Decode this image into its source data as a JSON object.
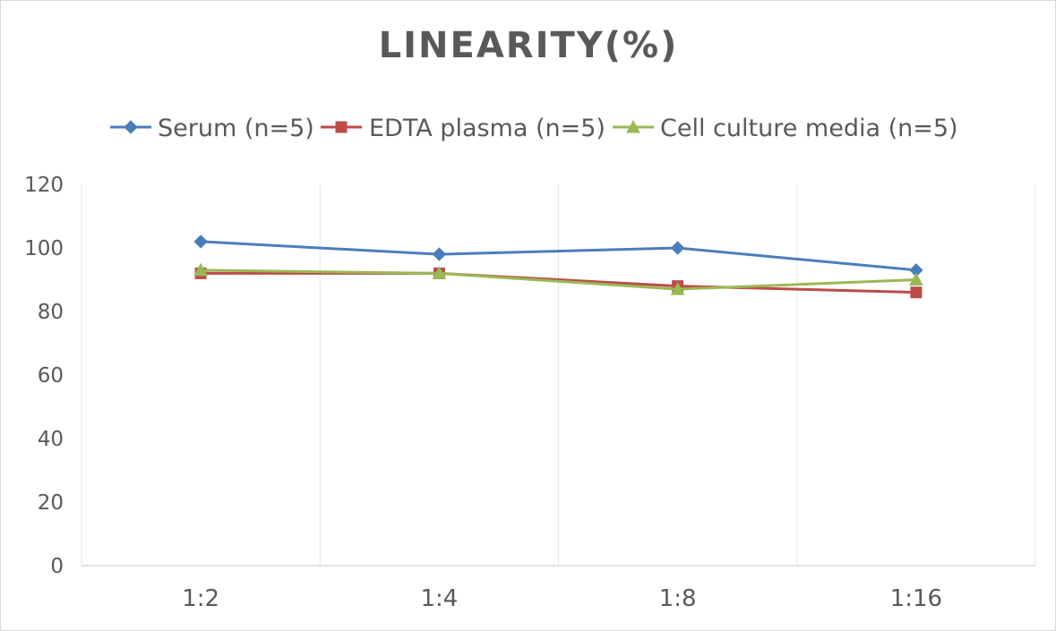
{
  "chart_data": {
    "type": "line",
    "title": "LINEARITY(%)",
    "xlabel": "",
    "ylabel": "",
    "categories": [
      "1:2",
      "1:4",
      "1:8",
      "1:16"
    ],
    "ylim": [
      0,
      120
    ],
    "yticks": [
      0,
      20,
      40,
      60,
      80,
      100,
      120
    ],
    "grid": "vertical",
    "legend_position": "top",
    "series": [
      {
        "name": "Serum (n=5)",
        "values": [
          102,
          98,
          100,
          93
        ],
        "color": "#4a7ebb",
        "marker": "diamond"
      },
      {
        "name": "EDTA plasma (n=5)",
        "values": [
          92,
          92,
          88,
          86
        ],
        "color": "#be4b48",
        "marker": "square"
      },
      {
        "name": "Cell culture media (n=5)",
        "values": [
          93,
          92,
          87,
          90
        ],
        "color": "#98b954",
        "marker": "triangle"
      }
    ]
  },
  "colors": {
    "text": "#595959",
    "axis": "#d9d9d9",
    "grid": "#e6e6e6"
  }
}
